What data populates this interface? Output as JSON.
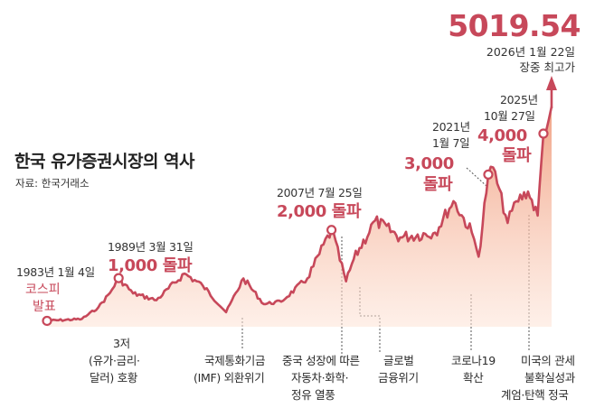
{
  "header": {
    "title": "한국 유가증권시장의 역사",
    "source": "자료: 한국거래소"
  },
  "peak": {
    "value": "5019.54",
    "date": "2026년 1월 22일",
    "label": "장중 최고가"
  },
  "events": [
    {
      "date": "1983년 1월 4일",
      "label": [
        "코스피",
        "발표"
      ]
    },
    {
      "date": "1989년 3월 31일",
      "label": [
        "1,000 돌파"
      ]
    },
    {
      "date": "2007년 7월 25일",
      "label": [
        "2,000 돌파"
      ]
    },
    {
      "date": [
        "2021년",
        "1월 7일"
      ],
      "label": [
        "3,000",
        "돌파"
      ]
    },
    {
      "date": [
        "2025년",
        "10월 27일"
      ],
      "label": [
        "4,000",
        "돌파"
      ]
    }
  ],
  "notes": [
    [
      "3저",
      "(유가·금리·",
      "달러) 호황"
    ],
    [
      "국제통화기금",
      "(IMF) 외환위기"
    ],
    [
      "중국 성장에 따른",
      "자동차·화학·",
      "정유 열풍"
    ],
    [
      "글로벌",
      "금융위기"
    ],
    [
      "코로나19",
      "확산"
    ],
    [
      "미국의 관세",
      "불확실성과",
      "계엄·탄핵 정국"
    ]
  ],
  "colors": {
    "line": "#c7485a",
    "area_top": "#ef9472",
    "area_bottom": "#fde3d6",
    "accent_text": "#c7485a"
  },
  "chart_data": {
    "type": "area",
    "series": [
      {
        "x": [
          "1983-01",
          "1986-01",
          "1987-06",
          "1988-06",
          "1989-03",
          "1990-06",
          "1992-06",
          "1994-11",
          "1996-06",
          "1998-06",
          "1999-12",
          "2001-09",
          "2003-03",
          "2005-06",
          "2007-07",
          "2008-10",
          "2009-06",
          "2011-04",
          "2013-06",
          "2016-06",
          "2018-01",
          "2019-08",
          "2020-03",
          "2021-01",
          "2021-06",
          "2022-09",
          "2023-06",
          "2024-06",
          "2025-04",
          "2025-10",
          "2026-01"
        ],
        "values": [
          122,
          160,
          400,
          700,
          1007,
          690,
          550,
          1100,
          850,
          300,
          1000,
          470,
          520,
          1000,
          2004,
          940,
          1400,
          2200,
          1850,
          1950,
          2600,
          1950,
          1450,
          3152,
          3300,
          2150,
          2600,
          2800,
          2300,
          4000,
          5019.54
        ]
      }
    ],
    "annotations": [
      "1983년 1월 4일 코스피 발표",
      "1989년 3월 31일 1,000 돌파",
      "2007년 7월 25일 2,000 돌파",
      "2021년 1월 7일 3,000 돌파",
      "2025년 10월 27일 4,000 돌파",
      "2026년 1월 22일 장중 최고가 5019.54"
    ],
    "grid": false,
    "axes_visible": false
  }
}
